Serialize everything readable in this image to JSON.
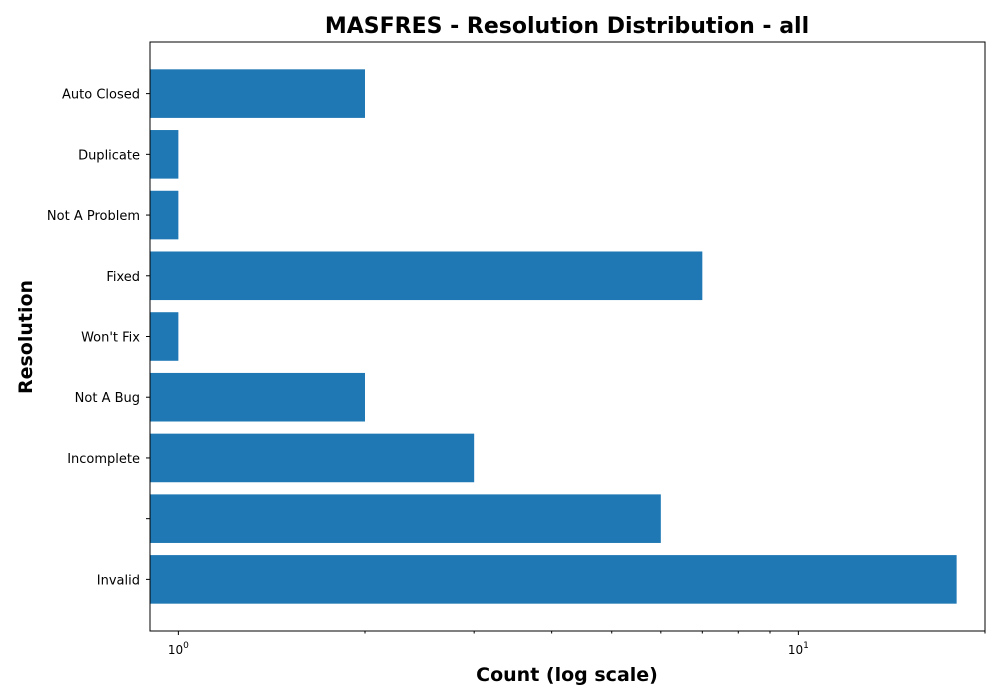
{
  "chart_data": {
    "type": "bar",
    "orientation": "horizontal",
    "title": "MASFRES - Resolution Distribution - all",
    "xlabel": "Count (log scale)",
    "ylabel": "Resolution",
    "x_scale": "log",
    "xlim": [
      0.9,
      20
    ],
    "x_ticks": [
      {
        "value": 1,
        "base": "10",
        "exp": "0"
      },
      {
        "value": 10,
        "base": "10",
        "exp": "1"
      }
    ],
    "categories": [
      "Auto Closed",
      "Duplicate",
      "Not A Problem",
      "Fixed",
      "Won't Fix",
      "Not A Bug",
      "Incomplete",
      "",
      "Invalid"
    ],
    "values": [
      2,
      1,
      1,
      7,
      1,
      2,
      3,
      6,
      18
    ],
    "color": "#1f77b4",
    "grid": false,
    "legend": "none"
  }
}
